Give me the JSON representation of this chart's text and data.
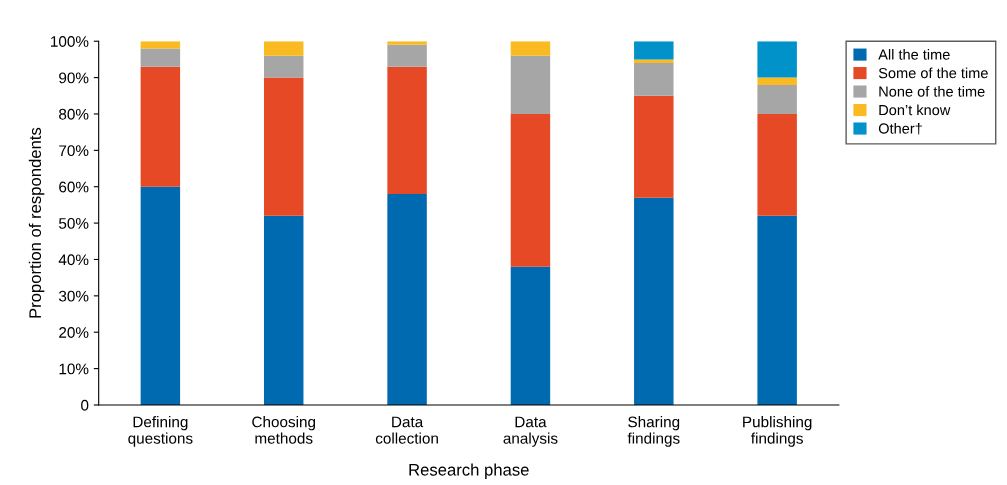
{
  "chart_data": {
    "type": "bar",
    "stacked": true,
    "xlabel": "Research phase",
    "ylabel": "Proportion of respondents",
    "categories": [
      "Defining\nquestions",
      "Choosing\nmethods",
      "Data\ncollection",
      "Data\nanalysis",
      "Sharing\nfindings",
      "Publishing\nfindings"
    ],
    "series": [
      {
        "name": "All the time",
        "color": "#006ab0",
        "values": [
          60,
          52,
          58,
          38,
          57,
          52
        ]
      },
      {
        "name": "Some of the time",
        "color": "#e64926",
        "values": [
          33,
          38,
          35,
          42,
          28,
          28
        ]
      },
      {
        "name": "None of the time",
        "color": "#a6a6a6",
        "values": [
          5,
          6,
          6,
          16,
          9,
          8
        ]
      },
      {
        "name": "Don’t know",
        "color": "#f9bb21",
        "values": [
          2,
          4,
          1,
          4,
          1,
          2
        ]
      },
      {
        "name": "Other†",
        "color": "#0092c8",
        "values": [
          0,
          0,
          0,
          0,
          5,
          10
        ]
      }
    ],
    "ylim": [
      0,
      100
    ],
    "yticks": [
      {
        "value": 0,
        "label": "0"
      },
      {
        "value": 10,
        "label": "10%"
      },
      {
        "value": 20,
        "label": "20%"
      },
      {
        "value": 30,
        "label": "30%"
      },
      {
        "value": 40,
        "label": "40%"
      },
      {
        "value": 50,
        "label": "50%"
      },
      {
        "value": 60,
        "label": "60%"
      },
      {
        "value": 70,
        "label": "70%"
      },
      {
        "value": 80,
        "label": "80%"
      },
      {
        "value": 90,
        "label": "90%"
      },
      {
        "value": 100,
        "label": "100%"
      }
    ],
    "legend": "top right"
  }
}
